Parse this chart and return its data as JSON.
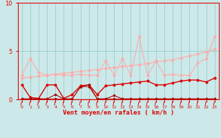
{
  "x": [
    0,
    1,
    2,
    3,
    4,
    5,
    6,
    7,
    8,
    9,
    10,
    11,
    12,
    13,
    14,
    15,
    16,
    17,
    18,
    19,
    20,
    21,
    22,
    23
  ],
  "line_pink_fluct": [
    2.5,
    4.2,
    2.8,
    2.5,
    2.6,
    2.5,
    2.5,
    2.6,
    2.5,
    2.5,
    4.0,
    2.5,
    4.2,
    2.5,
    6.5,
    2.5,
    4.0,
    2.5,
    2.6,
    2.5,
    2.5,
    3.8,
    4.2,
    6.5
  ],
  "line_pink_trend": [
    2.2,
    2.3,
    2.4,
    2.5,
    2.6,
    2.7,
    2.8,
    2.9,
    3.0,
    3.1,
    3.2,
    3.3,
    3.4,
    3.5,
    3.6,
    3.7,
    3.9,
    4.0,
    4.1,
    4.3,
    4.5,
    4.7,
    4.9,
    5.2
  ],
  "line_red_mid": [
    1.5,
    0.2,
    0.1,
    1.5,
    1.5,
    0.1,
    0.5,
    1.4,
    1.5,
    0.5,
    1.4,
    1.5,
    1.6,
    1.7,
    1.8,
    1.9,
    1.5,
    1.5,
    1.7,
    1.9,
    2.0,
    2.0,
    1.8,
    2.2
  ],
  "line_dark1": [
    0.05,
    0.05,
    0.05,
    0.05,
    0.5,
    0.05,
    0.05,
    1.3,
    1.5,
    0.05,
    0.05,
    0.4,
    0.05,
    0.05,
    0.05,
    0.05,
    0.05,
    0.05,
    0.05,
    0.05,
    0.05,
    0.05,
    0.05,
    0.05
  ],
  "line_dark2": [
    0.05,
    0.05,
    0.05,
    0.05,
    0.05,
    0.05,
    0.05,
    1.3,
    1.3,
    0.05,
    0.05,
    0.05,
    0.05,
    0.05,
    0.05,
    0.05,
    0.05,
    0.05,
    0.05,
    0.05,
    0.05,
    0.05,
    0.05,
    0.05
  ],
  "ylim": [
    0,
    10
  ],
  "yticks": [
    0,
    5,
    10
  ],
  "xlabel": "Vent moyen/en rafales ( km/h )",
  "bg_color": "#cce8e8",
  "grid_color": "#99cccc",
  "color_light_pink": "#ffaaaa",
  "color_pink": "#ff8888",
  "color_red": "#dd0000",
  "color_dark_red": "#aa0000"
}
